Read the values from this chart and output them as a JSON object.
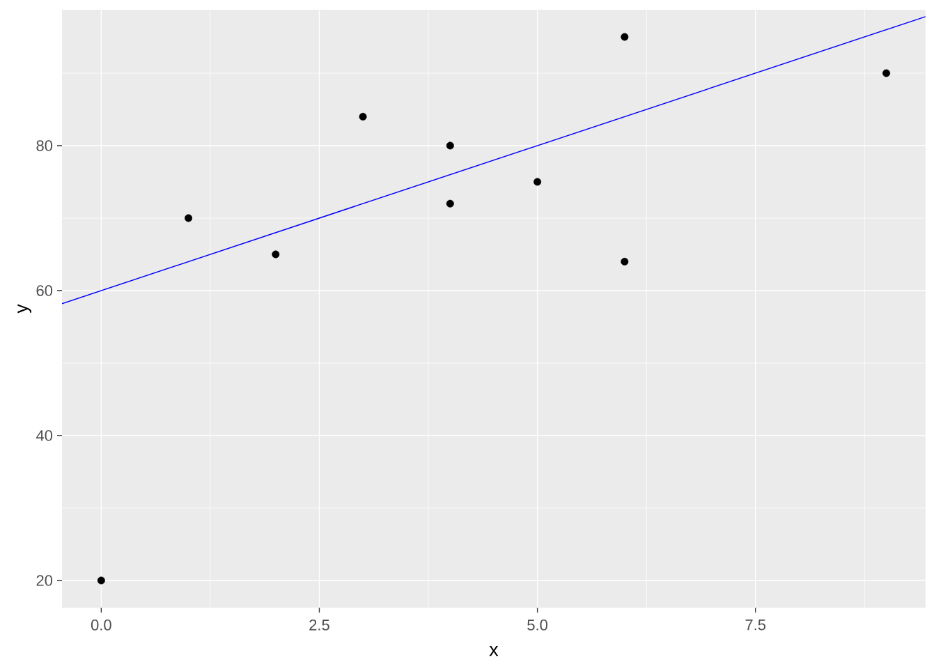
{
  "chart_data": {
    "type": "scatter",
    "xlabel": "x",
    "ylabel": "y",
    "xlim": [
      -0.45,
      9.45
    ],
    "ylim": [
      16.25,
      98.75
    ],
    "xticks": [
      {
        "value": 0,
        "label": "0.0"
      },
      {
        "value": 2.5,
        "label": "2.5"
      },
      {
        "value": 5,
        "label": "5.0"
      },
      {
        "value": 7.5,
        "label": "7.5"
      }
    ],
    "yticks": [
      20,
      40,
      60,
      80
    ],
    "grid": true,
    "marker": "circle",
    "series": [
      {
        "color": "#000000",
        "x": [
          0,
          1,
          2,
          3,
          4,
          4,
          5,
          6,
          6,
          9
        ],
        "values": [
          20,
          70,
          65,
          84,
          80,
          72,
          75,
          95,
          64,
          90
        ]
      },
      {
        "type": "line",
        "color": "#0000ff",
        "marker": "none",
        "line_style": "solid",
        "x": [
          -0.45,
          9.45
        ],
        "values": [
          58.2,
          97.8
        ]
      }
    ]
  }
}
